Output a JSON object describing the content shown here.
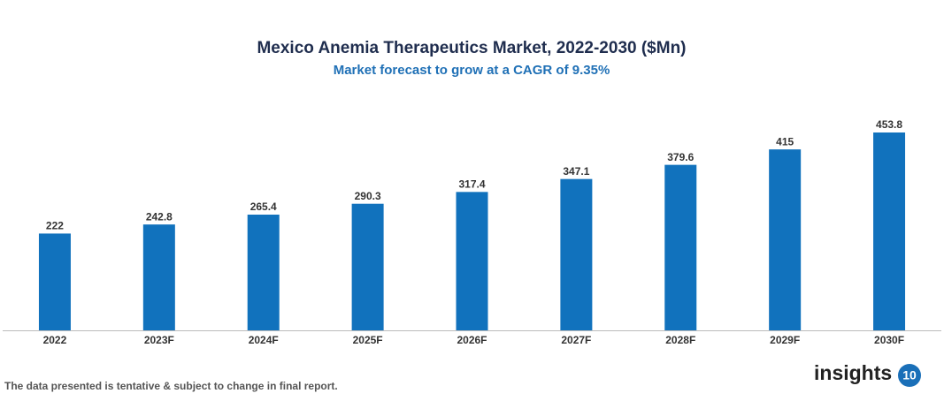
{
  "chart_data": {
    "type": "bar",
    "title": "Mexico Anemia Therapeutics Market, 2022-2030 ($Mn)",
    "subtitle": "Market forecast to grow at a CAGR of 9.35%",
    "categories": [
      "2022",
      "2023F",
      "2024F",
      "2025F",
      "2026F",
      "2027F",
      "2028F",
      "2029F",
      "2030F"
    ],
    "values": [
      222,
      242.8,
      265.4,
      290.3,
      317.4,
      347.1,
      379.6,
      415,
      453.8
    ],
    "color": "#1172bd"
  },
  "footnote": "The data presented is tentative & subject to change in final report.",
  "logo": {
    "text": "insights",
    "badge": "10"
  }
}
